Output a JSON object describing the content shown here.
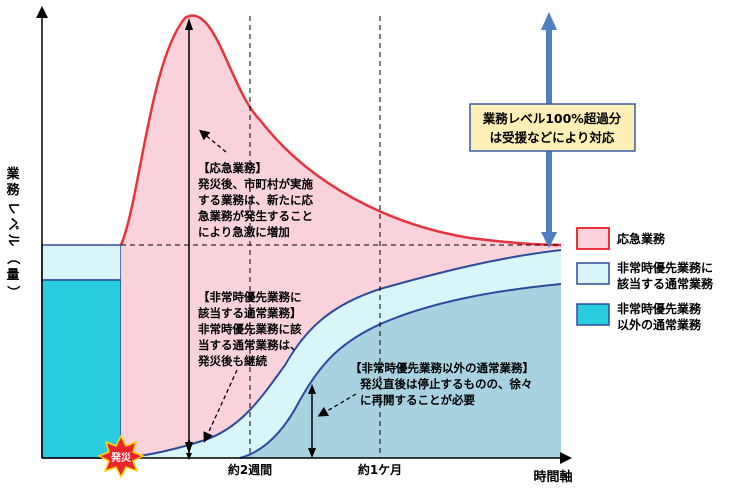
{
  "axes": {
    "y_label_chars": [
      "業",
      "務",
      "レ",
      "ベ",
      "ル",
      "（",
      "量",
      "）"
    ],
    "x_label": "時間軸",
    "x_ticks": [
      "約2週間",
      "約1ケ月"
    ]
  },
  "callout": {
    "lines": [
      "業務レベル100%超過分",
      "は受援などにより対応"
    ]
  },
  "annotations": {
    "emergency": [
      "【応急業務】",
      "発災後、市町村が実施",
      "する業務は、新たに応",
      "急業務が発生すること",
      "により急激に増加"
    ],
    "priority": [
      "【非常時優先業務に",
      "該当する通常業務】",
      "非常時優先業務に該",
      "当する通常業務は、",
      "発災後も継続"
    ],
    "other": [
      "【非常時優先業務以外の通常業務】",
      "発災直後は停止するものの、徐々",
      "に再開することが必要"
    ]
  },
  "disaster_badge": "発災",
  "legend": [
    {
      "lines": [
        "応急業務"
      ],
      "fill": "#f9d2dc",
      "stroke": "#e8323c"
    },
    {
      "lines": [
        "非常時優先業務に",
        "該当する通常業務"
      ],
      "fill": "#d8f6f9",
      "stroke": "#2e4a9e"
    },
    {
      "lines": [
        "非常時優先業務",
        "以外の通常業務"
      ],
      "fill": "#29cde0",
      "stroke": "#2e4a9e"
    }
  ],
  "colors": {
    "emergency_fill": "#f9d2dc",
    "emergency_line": "#e8323c",
    "priority_fill": "#d8f6f9",
    "other_fill": "#a9d2e1",
    "pre_disaster_other": "#29cde0",
    "navy_line": "#2e4a9e",
    "callout_fill": "#fdefb6",
    "callout_border": "#3c5aa6",
    "blue_arrow": "#4f7ec0"
  }
}
